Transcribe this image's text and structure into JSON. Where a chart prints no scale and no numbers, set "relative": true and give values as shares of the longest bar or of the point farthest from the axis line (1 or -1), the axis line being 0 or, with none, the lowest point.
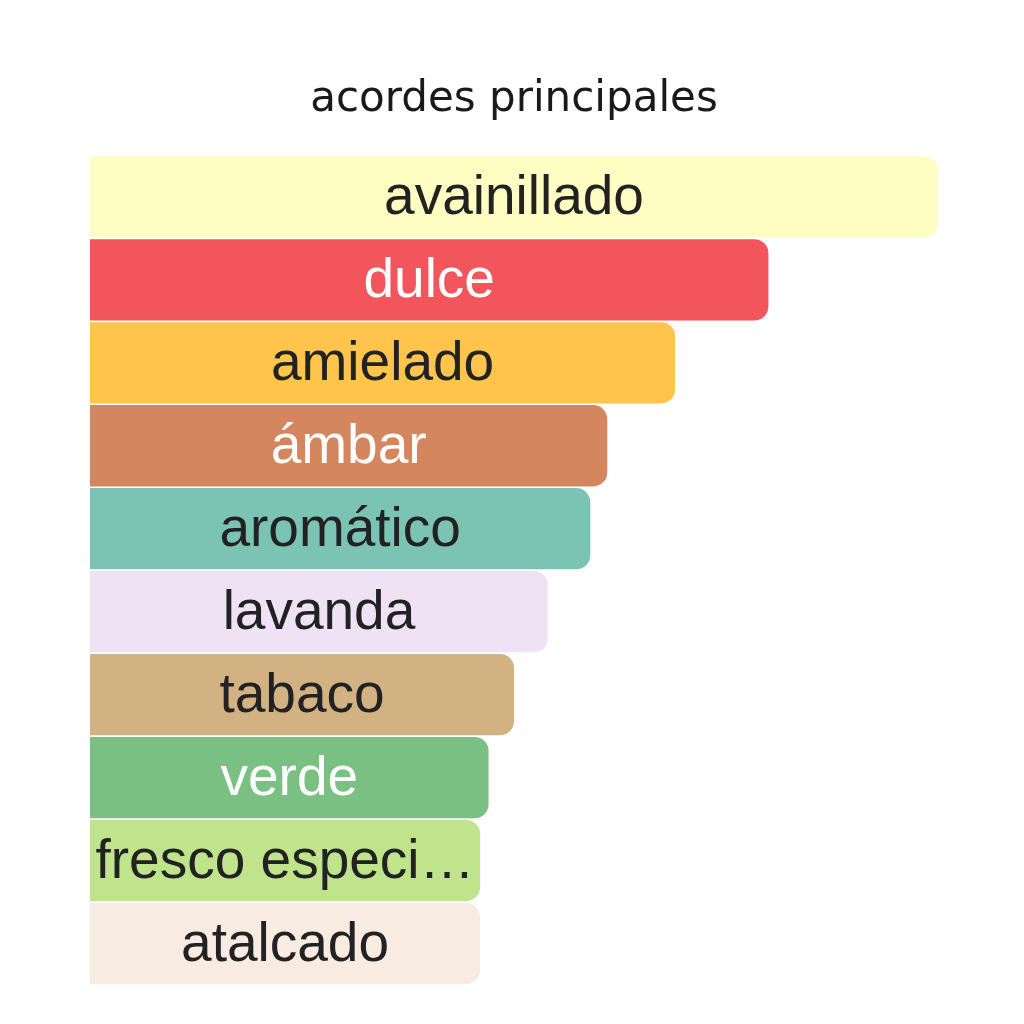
{
  "chart_data": {
    "type": "bar",
    "title": "acordes principales",
    "orientation": "horizontal",
    "relative": true,
    "categories": [
      "avainillado",
      "dulce",
      "amielado",
      "ámbar",
      "aromático",
      "lavanda",
      "tabaco",
      "verde",
      "fresco especi…",
      "atalcado"
    ],
    "values": [
      1,
      0.8,
      0.69,
      0.61,
      0.59,
      0.54,
      0.5,
      0.47,
      0.46,
      0.46
    ],
    "colors": [
      "#fefdc2",
      "#f2555b",
      "#fec44c",
      "#d4875f",
      "#7bc4b4",
      "#f0e2f5",
      "#d2b183",
      "#79c082",
      "#bfe48b",
      "#f8ece2"
    ]
  }
}
